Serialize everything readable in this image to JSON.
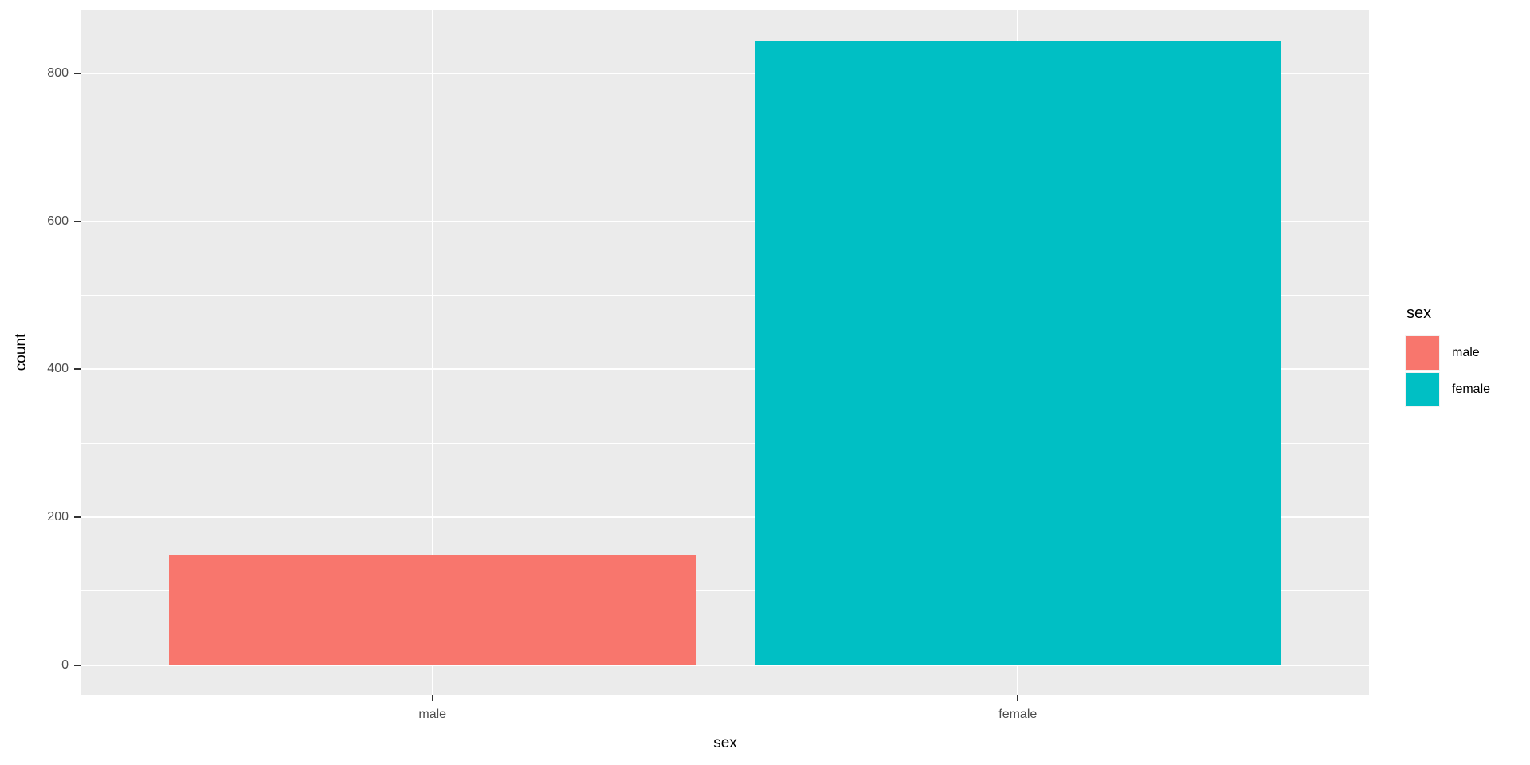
{
  "chart_data": {
    "type": "bar",
    "title": "",
    "categories": [
      "male",
      "female"
    ],
    "values": [
      150,
      843
    ],
    "series_colors": [
      "#F8766D",
      "#00BFC4"
    ],
    "xlabel": "sex",
    "ylabel": "count",
    "ylim": [
      -40,
      885
    ],
    "yticks_major": [
      0,
      200,
      400,
      600,
      800
    ],
    "ytick_labels": [
      "0",
      "200",
      "400",
      "600",
      "800"
    ],
    "yticks_minor": [
      100,
      300,
      500,
      700
    ],
    "grid": true,
    "panel_background": "#EBEBEB",
    "gridline_color": "#FFFFFF",
    "tick_label_color": "#4D4D4D",
    "axis_title_color": "#000000",
    "legend": {
      "position": "right",
      "title": "sex",
      "entries": [
        {
          "label": "male",
          "color": "#F8766D"
        },
        {
          "label": "female",
          "color": "#00BFC4"
        }
      ]
    }
  }
}
